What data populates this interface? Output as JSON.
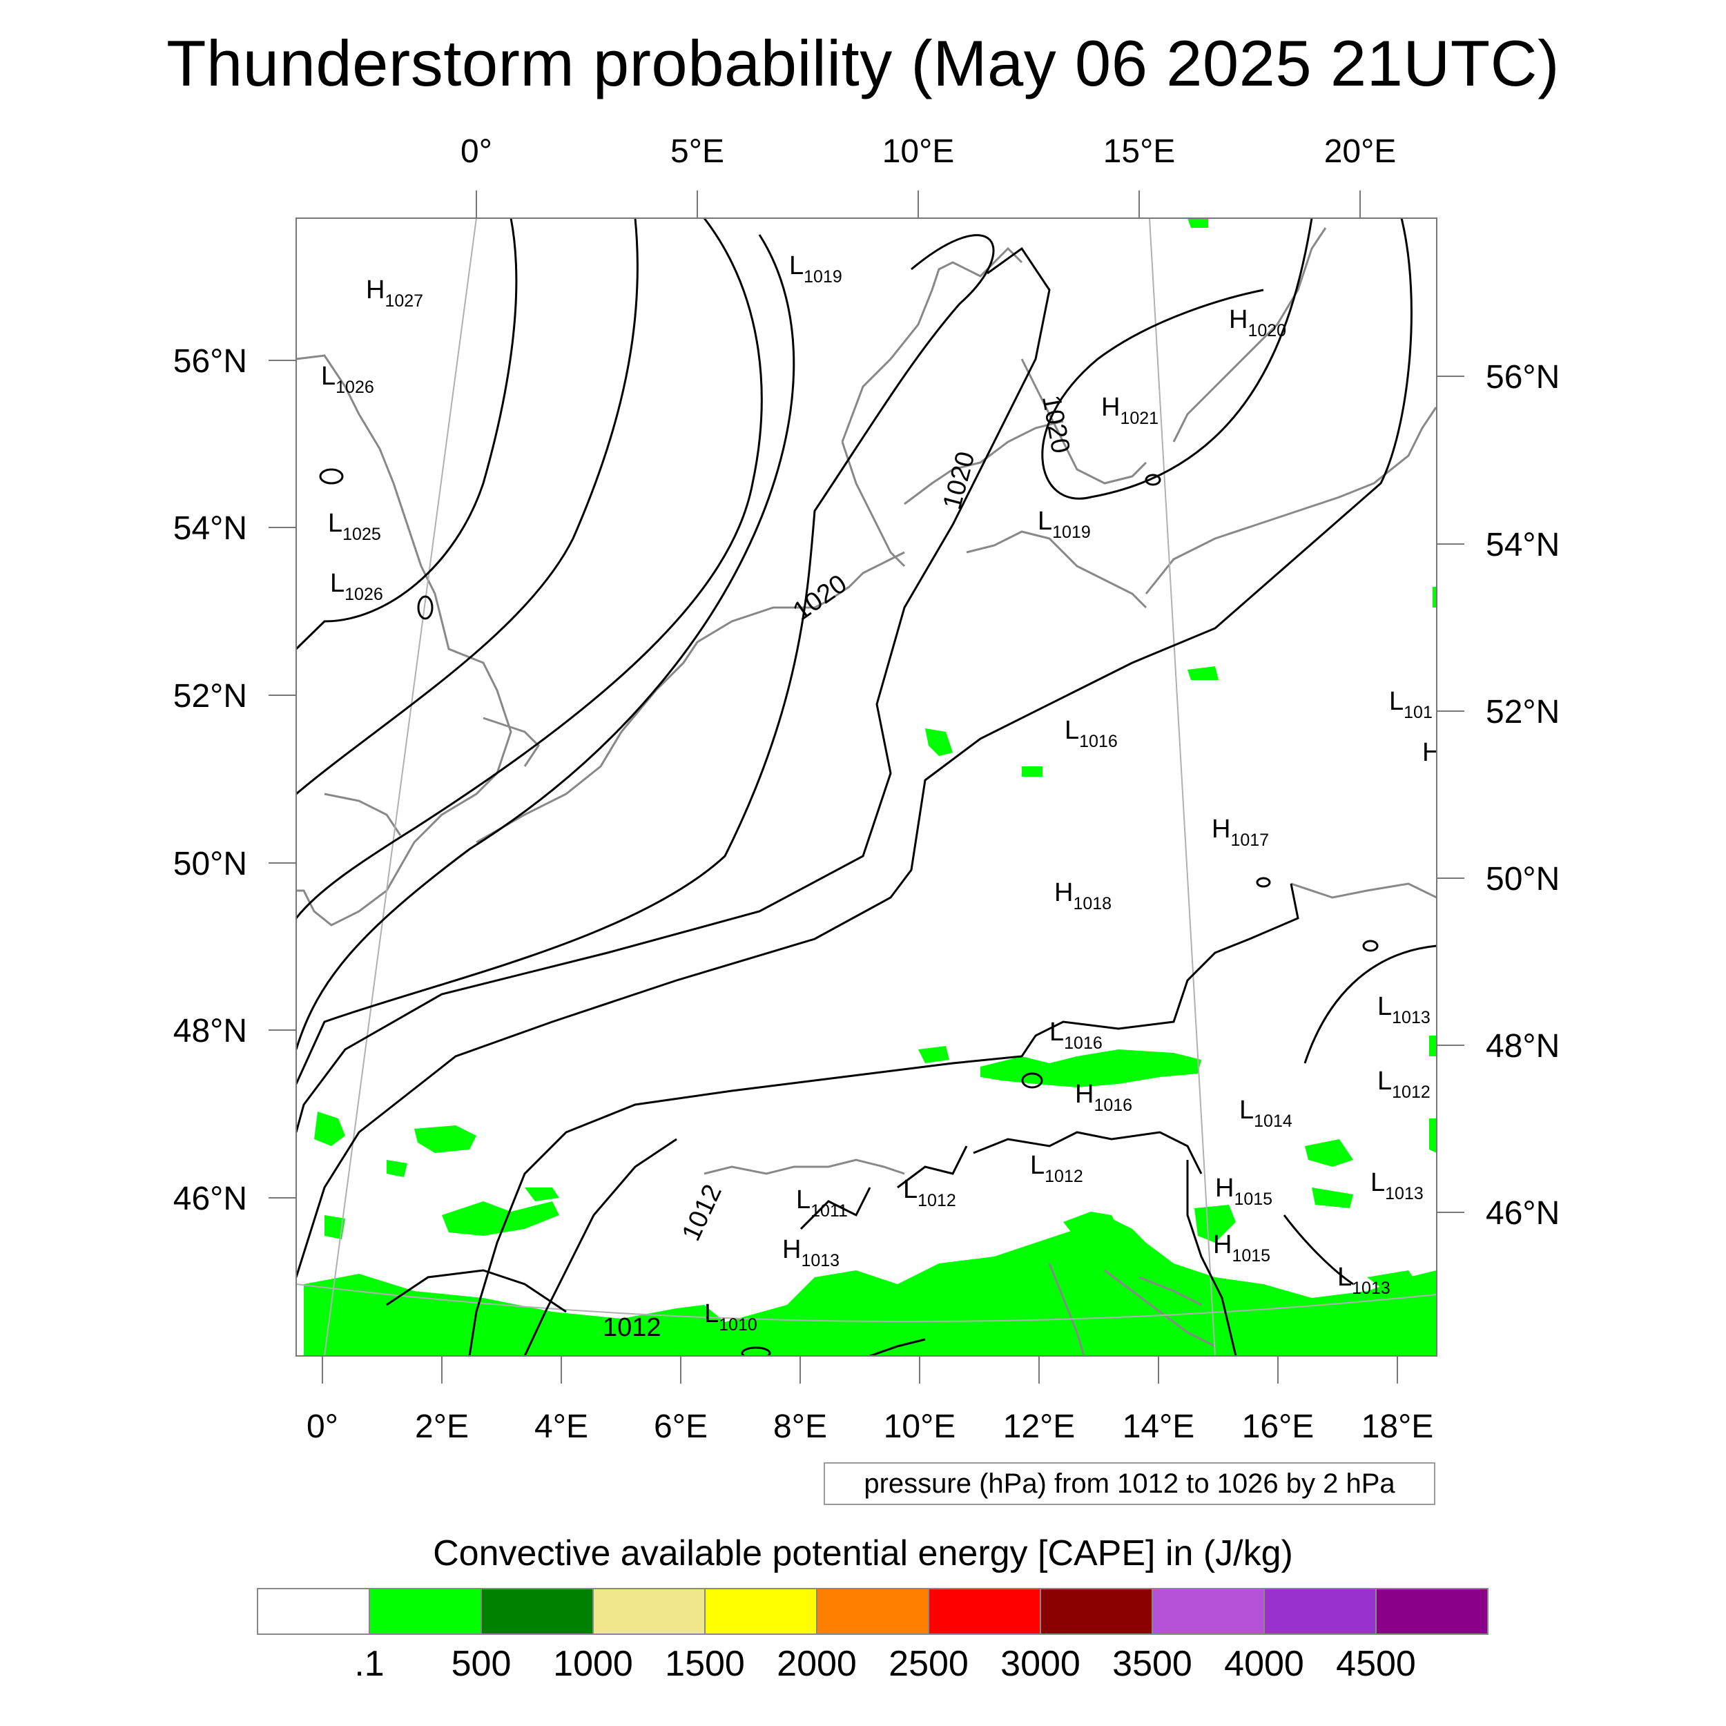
{
  "title": "Thunderstorm probability (May 06 2025 21UTC)",
  "top_lon_labels": [
    "0°",
    "5°E",
    "10°E",
    "15°E",
    "20°E"
  ],
  "bottom_lon_labels": [
    "0°",
    "2°E",
    "4°E",
    "6°E",
    "8°E",
    "10°E",
    "12°E",
    "14°E",
    "16°E",
    "18°E"
  ],
  "left_lat_labels": [
    "56°N",
    "54°N",
    "52°N",
    "50°N",
    "48°N",
    "46°N"
  ],
  "right_lat_labels": [
    "56°N",
    "54°N",
    "52°N",
    "50°N",
    "48°N",
    "46°N"
  ],
  "pressure_systems": [
    {
      "type": "H",
      "value": "1027"
    },
    {
      "type": "L",
      "value": "1026"
    },
    {
      "type": "L",
      "value": "1025"
    },
    {
      "type": "L",
      "value": "1026"
    },
    {
      "type": "L",
      "value": "1019"
    },
    {
      "type": "H",
      "value": "1020"
    },
    {
      "type": "H",
      "value": "1021"
    },
    {
      "type": "L",
      "value": "1019"
    },
    {
      "type": "L",
      "value": "1016"
    },
    {
      "type": "L",
      "value": "101"
    },
    {
      "type": "H",
      "value": ""
    },
    {
      "type": "H",
      "value": "1017"
    },
    {
      "type": "H",
      "value": "1018"
    },
    {
      "type": "L",
      "value": "1016"
    },
    {
      "type": "H",
      "value": "1016"
    },
    {
      "type": "L",
      "value": "1013"
    },
    {
      "type": "L",
      "value": "1012"
    },
    {
      "type": "L",
      "value": "1014"
    },
    {
      "type": "L",
      "value": "1012"
    },
    {
      "type": "L",
      "value": "1011"
    },
    {
      "type": "L",
      "value": "1012"
    },
    {
      "type": "H",
      "value": "1015"
    },
    {
      "type": "L",
      "value": "1013"
    },
    {
      "type": "H",
      "value": "1013"
    },
    {
      "type": "H",
      "value": "1015"
    },
    {
      "type": "L",
      "value": "1013"
    },
    {
      "type": "L",
      "value": "1010"
    }
  ],
  "contour_labels": [
    "1020",
    "1020",
    "1020",
    "1012",
    "1012"
  ],
  "contour_info": "pressure (hPa) from 1012 to 1026 by 2 hPa",
  "colorbar_title": "Convective available potential energy [CAPE] in (J/kg)",
  "colorbar_colors": [
    "#ffffff",
    "#00ff00",
    "#008000",
    "#f0e68c",
    "#ffff00",
    "#ff8000",
    "#ff0000",
    "#8b0000",
    "#b452d8",
    "#9932cc",
    "#8b008b"
  ],
  "colorbar_labels": [
    ".1",
    "500",
    "1000",
    "1500",
    "2000",
    "2500",
    "3000",
    "3500",
    "4000",
    "4500"
  ]
}
